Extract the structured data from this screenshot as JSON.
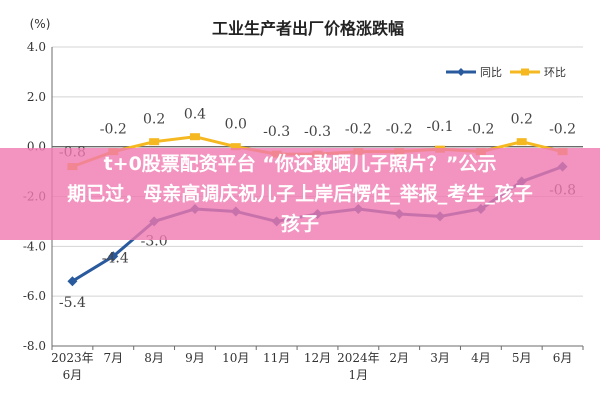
{
  "page": {
    "ylabel_unit": "(%)"
  },
  "chart_data": {
    "type": "line",
    "title": "工业生产者出厂价格涨跌幅",
    "ylabel": "(%)",
    "xlabel": "",
    "ylim": [
      -8.0,
      4.0
    ],
    "yticks": [
      "4.0",
      "2.0",
      "0.0",
      "-2.0",
      "-4.0",
      "-6.0",
      "-8.0"
    ],
    "categories": [
      "2023年\n6月",
      "7月",
      "8月",
      "9月",
      "10月",
      "11月",
      "12月",
      "2024年\n1月",
      "2月",
      "3月",
      "4月",
      "5月",
      "6月"
    ],
    "series": [
      {
        "name": "同比",
        "color": "#2a5a9e",
        "values": [
          -5.4,
          -4.4,
          -3.0,
          -2.5,
          -2.6,
          -3.0,
          -2.7,
          -2.5,
          -2.7,
          -2.8,
          -2.5,
          -1.4,
          -0.8
        ],
        "labels": [
          "-5.4",
          "-4.4",
          "-3.0",
          "",
          "",
          "",
          "",
          "",
          "",
          "",
          "",
          "",
          "-0.8"
        ]
      },
      {
        "name": "环比",
        "color": "#f5b820",
        "values": [
          -0.8,
          -0.2,
          0.2,
          0.4,
          0.0,
          -0.3,
          -0.3,
          -0.2,
          -0.2,
          -0.1,
          -0.2,
          0.2,
          -0.2
        ],
        "labels": [
          "-0.8",
          "-0.2",
          "0.2",
          "0.4",
          "0.0",
          "-0.3",
          "-0.3",
          "-0.2",
          "-0.2",
          "-0.1",
          "-0.2",
          "0.2",
          "-0.2"
        ]
      }
    ],
    "grid": true,
    "legend": "top-right"
  },
  "overlay": {
    "line1": "t+0股票配资平台 “你还敢晒儿子照片？”公示",
    "line2": "期已过，母亲高调庆祝儿子上岸后愣住_举报_考生_孩子",
    "line3": "孩子"
  }
}
